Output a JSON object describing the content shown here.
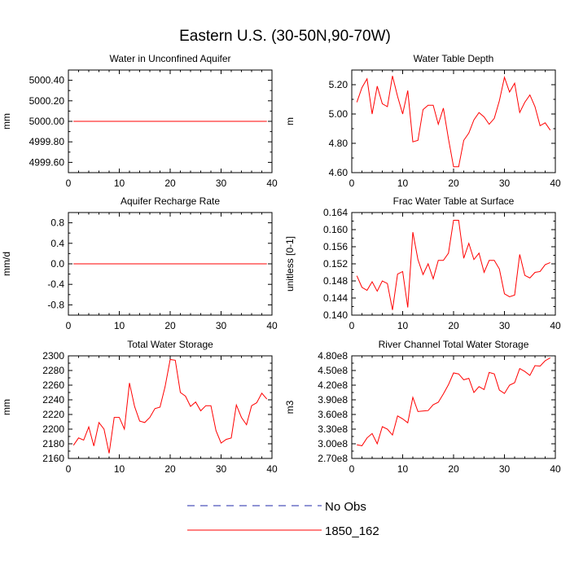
{
  "title": "Eastern U.S. (30-50N,90-70W)",
  "colors": {
    "model_line": "#ff0000",
    "obs_line": "#1f2aa8",
    "axis": "#000000"
  },
  "legend": [
    {
      "label": "No Obs",
      "style": "dashed",
      "color": "#1f2aa8"
    },
    {
      "label": "1850_162",
      "style": "solid",
      "color": "#ff0000"
    }
  ],
  "chart_data": [
    {
      "type": "line",
      "title": "Water in Unconfined Aquifer",
      "ylabel": "mm",
      "xlim": [
        0,
        40
      ],
      "ylim": [
        4999.5,
        5000.5
      ],
      "xticks": [
        0,
        10,
        20,
        30,
        40
      ],
      "yticks": [
        4999.6,
        4999.8,
        5000.0,
        5000.2,
        5000.4
      ],
      "yticklabels": [
        "4999.60",
        "4999.80",
        "5000.00",
        "5000.20",
        "5000.40"
      ],
      "series": [
        {
          "name": "1850_162",
          "x": [
            1,
            2,
            3,
            4,
            5,
            6,
            7,
            8,
            9,
            10,
            11,
            12,
            13,
            14,
            15,
            16,
            17,
            18,
            19,
            20,
            21,
            22,
            23,
            24,
            25,
            26,
            27,
            28,
            29,
            30,
            31,
            32,
            33,
            34,
            35,
            36,
            37,
            38,
            39
          ],
          "y": [
            5000,
            5000,
            5000,
            5000,
            5000,
            5000,
            5000,
            5000,
            5000,
            5000,
            5000,
            5000,
            5000,
            5000,
            5000,
            5000,
            5000,
            5000,
            5000,
            5000,
            5000,
            5000,
            5000,
            5000,
            5000,
            5000,
            5000,
            5000,
            5000,
            5000,
            5000,
            5000,
            5000,
            5000,
            5000,
            5000,
            5000,
            5000,
            5000
          ]
        }
      ]
    },
    {
      "type": "line",
      "title": "Water Table Depth",
      "ylabel": "m",
      "xlim": [
        0,
        40
      ],
      "ylim": [
        4.6,
        5.3
      ],
      "xticks": [
        0,
        10,
        20,
        30,
        40
      ],
      "yticks": [
        4.6,
        4.8,
        5.0,
        5.2
      ],
      "yticklabels": [
        "4.60",
        "4.80",
        "5.00",
        "5.20"
      ],
      "series": [
        {
          "name": "1850_162",
          "x": [
            1,
            2,
            3,
            4,
            5,
            6,
            7,
            8,
            9,
            10,
            11,
            12,
            13,
            14,
            15,
            16,
            17,
            18,
            19,
            20,
            21,
            22,
            23,
            24,
            25,
            26,
            27,
            28,
            29,
            30,
            31,
            32,
            33,
            34,
            35,
            36,
            37,
            38,
            39
          ],
          "y": [
            5.08,
            5.18,
            5.24,
            5.0,
            5.19,
            5.07,
            5.05,
            5.26,
            5.12,
            5.0,
            5.16,
            4.81,
            4.82,
            5.03,
            5.06,
            5.06,
            4.93,
            5.04,
            4.83,
            4.64,
            4.64,
            4.82,
            4.87,
            4.96,
            5.01,
            4.98,
            4.93,
            4.97,
            5.09,
            5.25,
            5.15,
            5.21,
            5.01,
            5.08,
            5.13,
            5.05,
            4.92,
            4.94,
            4.89
          ]
        }
      ]
    },
    {
      "type": "line",
      "title": "Aquifer Recharge Rate",
      "ylabel": "mm/d",
      "xlim": [
        0,
        40
      ],
      "ylim": [
        -1.0,
        1.0
      ],
      "xticks": [
        0,
        10,
        20,
        30,
        40
      ],
      "yticks": [
        -0.8,
        -0.4,
        0.0,
        0.4,
        0.8
      ],
      "yticklabels": [
        "-0.8",
        "-0.4",
        "0.0",
        "0.4",
        "0.8"
      ],
      "series": [
        {
          "name": "1850_162",
          "x": [
            1,
            2,
            3,
            4,
            5,
            6,
            7,
            8,
            9,
            10,
            11,
            12,
            13,
            14,
            15,
            16,
            17,
            18,
            19,
            20,
            21,
            22,
            23,
            24,
            25,
            26,
            27,
            28,
            29,
            30,
            31,
            32,
            33,
            34,
            35,
            36,
            37,
            38,
            39
          ],
          "y": [
            0,
            0,
            0,
            0,
            0,
            0,
            0,
            0,
            0,
            0,
            0,
            0,
            0,
            0,
            0,
            0,
            0,
            0,
            0,
            0,
            0,
            0,
            0,
            0,
            0,
            0,
            0,
            0,
            0,
            0,
            0,
            0,
            0,
            0,
            0,
            0,
            0,
            0,
            0
          ]
        }
      ]
    },
    {
      "type": "line",
      "title": "Frac Water Table at Surface",
      "ylabel": "unitless [0-1]",
      "xlim": [
        0,
        40
      ],
      "ylim": [
        0.14,
        0.164
      ],
      "xticks": [
        0,
        10,
        20,
        30,
        40
      ],
      "yticks": [
        0.14,
        0.144,
        0.148,
        0.152,
        0.156,
        0.16,
        0.164
      ],
      "yticklabels": [
        "0.140",
        "0.144",
        "0.148",
        "0.152",
        "0.156",
        "0.160",
        "0.164"
      ],
      "series": [
        {
          "name": "1850_162",
          "x": [
            1,
            2,
            3,
            4,
            5,
            6,
            7,
            8,
            9,
            10,
            11,
            12,
            13,
            14,
            15,
            16,
            17,
            18,
            19,
            20,
            21,
            22,
            23,
            24,
            25,
            26,
            27,
            28,
            29,
            30,
            31,
            32,
            33,
            34,
            35,
            36,
            37,
            38,
            39
          ],
          "y": [
            0.1492,
            0.1465,
            0.1458,
            0.1478,
            0.1456,
            0.148,
            0.1474,
            0.1412,
            0.1496,
            0.1502,
            0.1418,
            0.1594,
            0.153,
            0.1495,
            0.152,
            0.1485,
            0.1528,
            0.1528,
            0.1545,
            0.1622,
            0.1622,
            0.1533,
            0.1568,
            0.153,
            0.1545,
            0.15,
            0.1528,
            0.1528,
            0.1508,
            0.145,
            0.1443,
            0.1447,
            0.1542,
            0.1493,
            0.1487,
            0.15,
            0.1502,
            0.1518,
            0.1523
          ]
        }
      ]
    },
    {
      "type": "line",
      "title": "Total Water Storage",
      "ylabel": "mm",
      "xlim": [
        0,
        40
      ],
      "ylim": [
        2160,
        2300
      ],
      "xticks": [
        0,
        10,
        20,
        30,
        40
      ],
      "yticks": [
        2160,
        2180,
        2200,
        2220,
        2240,
        2260,
        2280,
        2300
      ],
      "yticklabels": [
        "2160",
        "2180",
        "2200",
        "2220",
        "2240",
        "2260",
        "2280",
        "2300"
      ],
      "series": [
        {
          "name": "1850_162",
          "x": [
            1,
            2,
            3,
            4,
            5,
            6,
            7,
            8,
            9,
            10,
            11,
            12,
            13,
            14,
            15,
            16,
            17,
            18,
            19,
            20,
            21,
            22,
            23,
            24,
            25,
            26,
            27,
            28,
            29,
            30,
            31,
            32,
            33,
            34,
            35,
            36,
            37,
            38,
            39
          ],
          "y": [
            2178,
            2188,
            2185,
            2203,
            2177,
            2209,
            2200,
            2167,
            2216,
            2216,
            2200,
            2263,
            2231,
            2211,
            2209,
            2216,
            2228,
            2230,
            2258,
            2295,
            2294,
            2250,
            2245,
            2231,
            2237,
            2225,
            2232,
            2232,
            2198,
            2181,
            2186,
            2188,
            2233,
            2216,
            2206,
            2232,
            2236,
            2249,
            2241
          ]
        }
      ]
    },
    {
      "type": "line",
      "title": "River Channel Total Water Storage",
      "ylabel": "m3",
      "xlim": [
        0,
        40
      ],
      "ylim": [
        270000000,
        480000000
      ],
      "xticks": [
        0,
        10,
        20,
        30,
        40
      ],
      "yticks": [
        270000000,
        300000000,
        330000000,
        360000000,
        390000000,
        420000000,
        450000000,
        480000000
      ],
      "yticklabels": [
        "2.70e8",
        "3.00e8",
        "3.30e8",
        "3.60e8",
        "3.90e8",
        "4.20e8",
        "4.50e8",
        "4.80e8"
      ],
      "series": [
        {
          "name": "1850_162",
          "x": [
            1,
            2,
            3,
            4,
            5,
            6,
            7,
            8,
            9,
            10,
            11,
            12,
            13,
            14,
            15,
            16,
            17,
            18,
            19,
            20,
            21,
            22,
            23,
            24,
            25,
            26,
            27,
            28,
            29,
            30,
            31,
            32,
            33,
            34,
            35,
            36,
            37,
            38,
            39
          ],
          "y": [
            298000000,
            296000000,
            312000000,
            321000000,
            300000000,
            335000000,
            330000000,
            318000000,
            357000000,
            351000000,
            343000000,
            395000000,
            366000000,
            367000000,
            368000000,
            380000000,
            385000000,
            402000000,
            421000000,
            445000000,
            443000000,
            431000000,
            434000000,
            405000000,
            417000000,
            411000000,
            446000000,
            443000000,
            410000000,
            403000000,
            420000000,
            425000000,
            454000000,
            448000000,
            440000000,
            460000000,
            459000000,
            470000000,
            476000000
          ]
        }
      ]
    }
  ]
}
